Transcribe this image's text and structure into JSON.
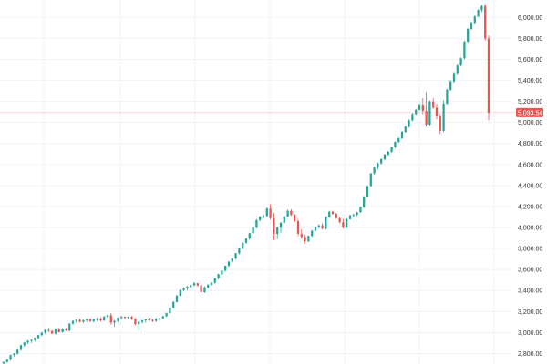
{
  "chart_data": {
    "type": "candlestick",
    "title": "",
    "xlabel": "",
    "ylabel": "",
    "ylim": [
      2700,
      6150
    ],
    "grid": true,
    "colors": {
      "up": "#26a69a",
      "down": "#ef5350",
      "grid": "#f0f3fa",
      "price_line": "#ef5350"
    },
    "y_ticks": [
      {
        "value": 2800,
        "label": "2,800.00"
      },
      {
        "value": 3000,
        "label": "3,000.00"
      },
      {
        "value": 3200,
        "label": "3,200.00"
      },
      {
        "value": 3400,
        "label": "3,400.00"
      },
      {
        "value": 3600,
        "label": "3,600.00"
      },
      {
        "value": 3800,
        "label": "3,800.00"
      },
      {
        "value": 4000,
        "label": "4,000.00"
      },
      {
        "value": 4200,
        "label": "4,200.00"
      },
      {
        "value": 4400,
        "label": "4,400.00"
      },
      {
        "value": 4600,
        "label": "4,600.00"
      },
      {
        "value": 4800,
        "label": "4,800.00"
      },
      {
        "value": 5000,
        "label": "5,000.00"
      },
      {
        "value": 5200,
        "label": "5,200.00"
      },
      {
        "value": 5400,
        "label": "5,400.00"
      },
      {
        "value": 5600,
        "label": "5,600.00"
      },
      {
        "value": 5800,
        "label": "5,800.00"
      },
      {
        "value": 6000,
        "label": "6,000.00"
      }
    ],
    "last_price": {
      "value": 5093.54,
      "label": "5,093.54"
    },
    "candles": [
      [
        2705,
        2725,
        2695,
        2720
      ],
      [
        2720,
        2745,
        2712,
        2740
      ],
      [
        2740,
        2790,
        2735,
        2785
      ],
      [
        2785,
        2805,
        2770,
        2798
      ],
      [
        2798,
        2840,
        2790,
        2835
      ],
      [
        2835,
        2885,
        2828,
        2880
      ],
      [
        2880,
        2910,
        2865,
        2905
      ],
      [
        2905,
        2930,
        2890,
        2920
      ],
      [
        2920,
        2935,
        2900,
        2930
      ],
      [
        2930,
        2955,
        2915,
        2948
      ],
      [
        2948,
        2980,
        2935,
        2975
      ],
      [
        2975,
        3005,
        2968,
        3000
      ],
      [
        3000,
        3030,
        2985,
        3025
      ],
      [
        3025,
        3045,
        3005,
        3015
      ],
      [
        3015,
        3020,
        2985,
        2990
      ],
      [
        2990,
        3040,
        2980,
        3030
      ],
      [
        3030,
        3045,
        3000,
        3005
      ],
      [
        3005,
        3040,
        3000,
        3035
      ],
      [
        3035,
        3045,
        3015,
        3020
      ],
      [
        3020,
        3090,
        3010,
        3085
      ],
      [
        3085,
        3115,
        3075,
        3110
      ],
      [
        3110,
        3125,
        3090,
        3120
      ],
      [
        3120,
        3135,
        3095,
        3102
      ],
      [
        3102,
        3125,
        3090,
        3118
      ],
      [
        3118,
        3135,
        3100,
        3128
      ],
      [
        3128,
        3130,
        3100,
        3108
      ],
      [
        3108,
        3135,
        3095,
        3125
      ],
      [
        3125,
        3140,
        3110,
        3130
      ],
      [
        3130,
        3145,
        3105,
        3115
      ],
      [
        3115,
        3160,
        3110,
        3150
      ],
      [
        3150,
        3170,
        3140,
        3165
      ],
      [
        3165,
        3185,
        3075,
        3095
      ],
      [
        3095,
        3120,
        3055,
        3110
      ],
      [
        3110,
        3145,
        3100,
        3140
      ],
      [
        3140,
        3160,
        3125,
        3150
      ],
      [
        3150,
        3155,
        3130,
        3140
      ],
      [
        3140,
        3155,
        3125,
        3148
      ],
      [
        3148,
        3160,
        3120,
        3130
      ],
      [
        3130,
        3140,
        3070,
        3080
      ],
      [
        3080,
        3110,
        3020,
        3102
      ],
      [
        3102,
        3120,
        3085,
        3115
      ],
      [
        3115,
        3130,
        3095,
        3125
      ],
      [
        3125,
        3140,
        3110,
        3120
      ],
      [
        3120,
        3128,
        3100,
        3110
      ],
      [
        3110,
        3140,
        3100,
        3130
      ],
      [
        3130,
        3140,
        3120,
        3135
      ],
      [
        3135,
        3160,
        3130,
        3155
      ],
      [
        3155,
        3190,
        3150,
        3185
      ],
      [
        3185,
        3240,
        3180,
        3235
      ],
      [
        3235,
        3300,
        3230,
        3290
      ],
      [
        3290,
        3360,
        3285,
        3350
      ],
      [
        3350,
        3410,
        3345,
        3405
      ],
      [
        3405,
        3430,
        3395,
        3420
      ],
      [
        3420,
        3445,
        3400,
        3435
      ],
      [
        3435,
        3460,
        3425,
        3450
      ],
      [
        3450,
        3480,
        3440,
        3470
      ],
      [
        3470,
        3475,
        3440,
        3448
      ],
      [
        3448,
        3455,
        3380,
        3385
      ],
      [
        3385,
        3440,
        3378,
        3430
      ],
      [
        3430,
        3460,
        3420,
        3455
      ],
      [
        3455,
        3480,
        3445,
        3475
      ],
      [
        3475,
        3520,
        3465,
        3515
      ],
      [
        3515,
        3560,
        3505,
        3555
      ],
      [
        3555,
        3595,
        3545,
        3590
      ],
      [
        3590,
        3640,
        3580,
        3635
      ],
      [
        3635,
        3680,
        3625,
        3675
      ],
      [
        3675,
        3710,
        3665,
        3705
      ],
      [
        3705,
        3760,
        3695,
        3755
      ],
      [
        3755,
        3810,
        3745,
        3800
      ],
      [
        3800,
        3860,
        3790,
        3855
      ],
      [
        3855,
        3900,
        3845,
        3895
      ],
      [
        3895,
        3950,
        3885,
        3945
      ],
      [
        3945,
        4010,
        3935,
        4000
      ],
      [
        4000,
        4080,
        3990,
        4070
      ],
      [
        4070,
        4110,
        4060,
        4105
      ],
      [
        4105,
        4120,
        4085,
        4110
      ],
      [
        4110,
        4190,
        4100,
        4180
      ],
      [
        4180,
        4220,
        4075,
        4090
      ],
      [
        4090,
        4140,
        3880,
        3940
      ],
      [
        3940,
        4010,
        3890,
        4000
      ],
      [
        4000,
        4050,
        3950,
        4045
      ],
      [
        4045,
        4110,
        4040,
        4105
      ],
      [
        4105,
        4170,
        4100,
        4160
      ],
      [
        4160,
        4175,
        4110,
        4120
      ],
      [
        4120,
        4130,
        4050,
        4060
      ],
      [
        4060,
        4080,
        3920,
        3940
      ],
      [
        3940,
        3985,
        3890,
        3910
      ],
      [
        3910,
        3930,
        3850,
        3870
      ],
      [
        3870,
        3925,
        3860,
        3920
      ],
      [
        3920,
        3975,
        3910,
        3970
      ],
      [
        3970,
        4010,
        3960,
        4005
      ],
      [
        4005,
        4030,
        3990,
        4020
      ],
      [
        4020,
        4040,
        3980,
        3990
      ],
      [
        3990,
        4110,
        3980,
        4100
      ],
      [
        4100,
        4160,
        4090,
        4150
      ],
      [
        4150,
        4160,
        4120,
        4130
      ],
      [
        4130,
        4140,
        4080,
        4090
      ],
      [
        4090,
        4100,
        4040,
        4050
      ],
      [
        4050,
        4080,
        3990,
        4000
      ],
      [
        4000,
        4090,
        3995,
        4080
      ],
      [
        4080,
        4120,
        4075,
        4115
      ],
      [
        4115,
        4135,
        4100,
        4120
      ],
      [
        4120,
        4150,
        4110,
        4145
      ],
      [
        4145,
        4200,
        4140,
        4195
      ],
      [
        4195,
        4300,
        4185,
        4295
      ],
      [
        4295,
        4400,
        4290,
        4395
      ],
      [
        4395,
        4520,
        4390,
        4515
      ],
      [
        4515,
        4580,
        4505,
        4570
      ],
      [
        4570,
        4620,
        4555,
        4610
      ],
      [
        4610,
        4660,
        4600,
        4650
      ],
      [
        4650,
        4700,
        4640,
        4695
      ],
      [
        4695,
        4730,
        4685,
        4720
      ],
      [
        4720,
        4770,
        4710,
        4765
      ],
      [
        4765,
        4820,
        4755,
        4815
      ],
      [
        4815,
        4860,
        4805,
        4850
      ],
      [
        4850,
        4920,
        4840,
        4910
      ],
      [
        4910,
        4970,
        4900,
        4960
      ],
      [
        4960,
        5030,
        4950,
        5020
      ],
      [
        5020,
        5090,
        5010,
        5080
      ],
      [
        5080,
        5130,
        5070,
        5120
      ],
      [
        5120,
        5180,
        5110,
        5170
      ],
      [
        5170,
        5230,
        5080,
        5110
      ],
      [
        5110,
        5290,
        4960,
        4980
      ],
      [
        4980,
        5210,
        4970,
        5200
      ],
      [
        5200,
        5230,
        5130,
        5140
      ],
      [
        5140,
        5180,
        5030,
        5060
      ],
      [
        5060,
        5080,
        4890,
        4920
      ],
      [
        4920,
        5210,
        4910,
        5180
      ],
      [
        5180,
        5320,
        5170,
        5310
      ],
      [
        5310,
        5400,
        5300,
        5390
      ],
      [
        5390,
        5480,
        5380,
        5470
      ],
      [
        5470,
        5560,
        5460,
        5550
      ],
      [
        5550,
        5620,
        5540,
        5610
      ],
      [
        5610,
        5780,
        5600,
        5770
      ],
      [
        5770,
        5900,
        5760,
        5890
      ],
      [
        5890,
        5960,
        5880,
        5950
      ],
      [
        5950,
        6020,
        5940,
        6010
      ],
      [
        6010,
        6080,
        6000,
        6070
      ],
      [
        6070,
        6120,
        6050,
        6110
      ],
      [
        6110,
        6130,
        5780,
        5800
      ],
      [
        5800,
        5830,
        5020,
        5093.54
      ]
    ]
  }
}
